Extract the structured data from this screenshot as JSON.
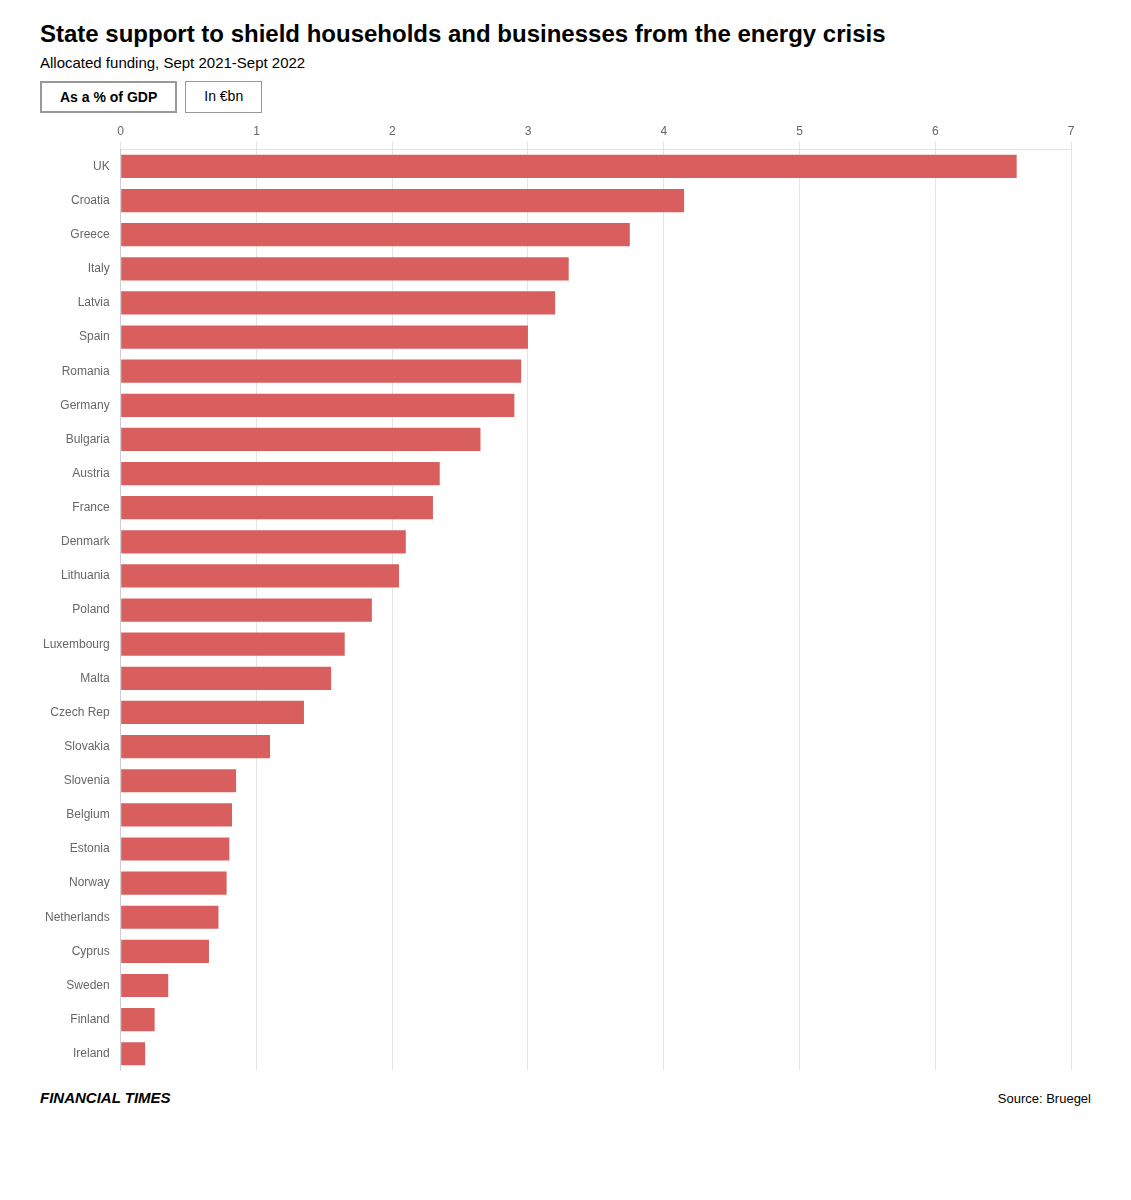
{
  "chart_data": {
    "type": "bar",
    "orientation": "horizontal",
    "title": "State support to shield households and businesses from the energy crisis",
    "subtitle": "Allocated funding, Sept 2021-Sept 2022",
    "annotations": [
      "As a % of GDP",
      "In €bn",
      "FINANCIAL TIMES",
      "Source: Bruegel"
    ],
    "categories": [
      "UK",
      "Croatia",
      "Greece",
      "Italy",
      "Latvia",
      "Spain",
      "Romania",
      "Germany",
      "Bulgaria",
      "Austria",
      "France",
      "Denmark",
      "Lithuania",
      "Poland",
      "Luxembourg",
      "Malta",
      "Czech Rep",
      "Slovakia",
      "Slovenia",
      "Belgium",
      "Estonia",
      "Norway",
      "Netherlands",
      "Cyprus",
      "Sweden",
      "Finland",
      "Ireland"
    ],
    "values": [
      6.6,
      4.15,
      3.75,
      3.3,
      3.2,
      3.0,
      2.95,
      2.9,
      2.65,
      2.35,
      2.3,
      2.1,
      2.05,
      1.85,
      1.65,
      1.55,
      1.35,
      1.1,
      0.85,
      0.82,
      0.8,
      0.78,
      0.72,
      0.65,
      0.35,
      0.25,
      0.18
    ],
    "color": "#d95f5f",
    "xlim": [
      0,
      7
    ],
    "xticks": [
      0,
      1,
      2,
      3,
      4,
      5,
      6,
      7
    ],
    "grid": true
  }
}
